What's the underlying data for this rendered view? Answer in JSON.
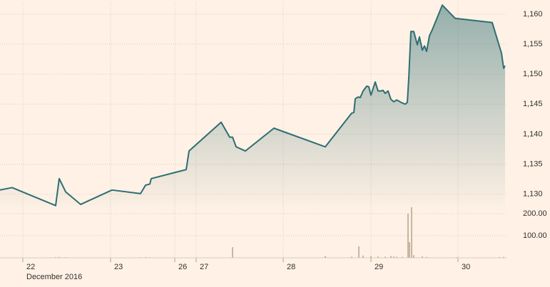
{
  "chart_data": {
    "type": "line",
    "xlabel": "December 2016",
    "xlim": [
      0,
      710
    ],
    "xticks": [
      {
        "value": 32,
        "label": "22"
      },
      {
        "value": 155,
        "label": "23"
      },
      {
        "value": 245,
        "label": "26"
      },
      {
        "value": 275,
        "label": "27"
      },
      {
        "value": 397,
        "label": "28"
      },
      {
        "value": 520,
        "label": "29"
      },
      {
        "value": 642,
        "label": "30"
      }
    ],
    "ylim": [
      1127,
      1162
    ],
    "yticks": [
      {
        "value": 1130,
        "label": "1,130"
      },
      {
        "value": 1135,
        "label": "1,135"
      },
      {
        "value": 1140,
        "label": "1,140"
      },
      {
        "value": 1145,
        "label": "1,145"
      },
      {
        "value": 1150,
        "label": "1,150"
      },
      {
        "value": 1155,
        "label": "1,155"
      },
      {
        "value": 1160,
        "label": "1,160"
      }
    ],
    "grid": true,
    "x": [
      0,
      17,
      78,
      83,
      92,
      113,
      157,
      197,
      204,
      210,
      212,
      261,
      265,
      310,
      322,
      326,
      331,
      344,
      384,
      456,
      493,
      496,
      498,
      502,
      505,
      509,
      514,
      517,
      520,
      526,
      530,
      534,
      537,
      540,
      544,
      548,
      552,
      556,
      564,
      568,
      571,
      573,
      576,
      580,
      585,
      588,
      592,
      595,
      598,
      602,
      606,
      620,
      638,
      690,
      703,
      706,
      708
    ],
    "series": [
      {
        "color": "#2e6e72",
        "values": [
          1130.7,
          1131.1,
          1128.1,
          1132.6,
          1130.4,
          1128.3,
          1130.7,
          1130.1,
          1131.5,
          1131.7,
          1132.6,
          1134.1,
          1137.2,
          1142.0,
          1139.5,
          1139.5,
          1137.9,
          1137.2,
          1141.0,
          1137.9,
          1143.5,
          1143.6,
          1145.9,
          1146.2,
          1146.1,
          1147.2,
          1148.0,
          1147.9,
          1146.5,
          1148.7,
          1147.2,
          1147.2,
          1147.3,
          1146.8,
          1147.2,
          1145.8,
          1145.4,
          1145.7,
          1145.2,
          1145.0,
          1145.3,
          1149.3,
          1157.1,
          1157.1,
          1154.9,
          1156.2,
          1154.0,
          1154.7,
          1153.8,
          1156.4,
          1157.4,
          1161.5,
          1159.3,
          1158.6,
          1153.5,
          1151.0,
          1151.4
        ]
      }
    ],
    "volume": {
      "color": "#c8b6a3",
      "ylim": [
        0,
        230
      ],
      "yticks": [
        {
          "value": 100,
          "label": "100.00"
        },
        {
          "value": 200,
          "label": "200.00"
        }
      ],
      "x": [
        78,
        83,
        92,
        197,
        204,
        210,
        326,
        456,
        493,
        503,
        509,
        520,
        530,
        540,
        548,
        552,
        556,
        564,
        572,
        574,
        577,
        580,
        592,
        598,
        640,
        700,
        706
      ],
      "values": [
        3,
        4,
        3,
        2,
        3,
        2,
        48,
        8,
        5,
        52,
        10,
        8,
        6,
        5,
        8,
        6,
        5,
        4,
        200,
        71,
        229,
        12,
        6,
        4,
        3,
        3,
        4
      ]
    }
  }
}
